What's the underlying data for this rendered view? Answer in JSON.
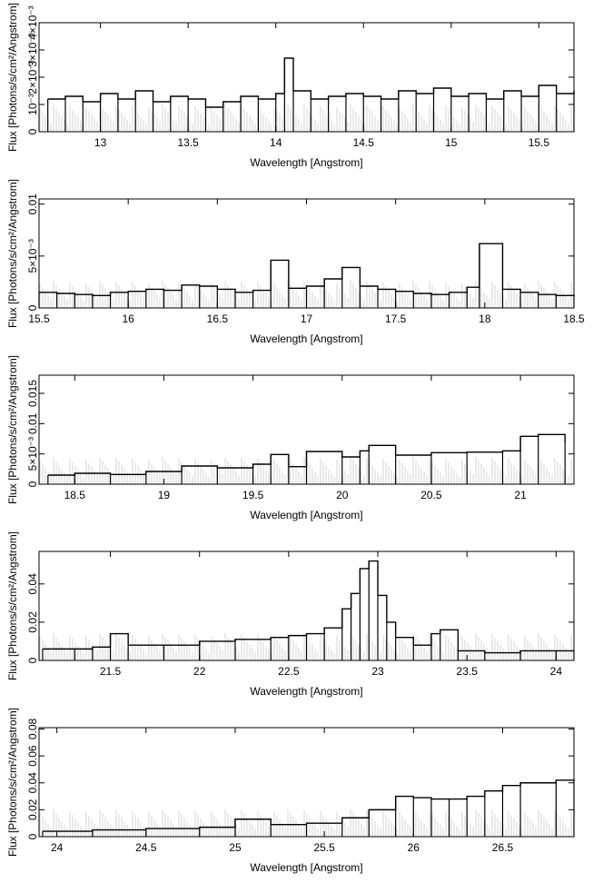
{
  "chart_data": [
    {
      "type": "line",
      "xlabel": "Wavelength [Angstrom]",
      "ylabel": "Flux [Photons/s/cm²/Angstrom]",
      "xlim": [
        12.65,
        15.7
      ],
      "ylim": [
        0,
        0.004
      ],
      "xticks": [
        "13",
        "13.5",
        "14",
        "14.5",
        "15",
        "15.5"
      ],
      "yticks": [
        "0",
        "10⁻³",
        "2×10⁻³",
        "3×10⁻³",
        "4×10⁻³"
      ],
      "series": [
        {
          "values": [
            [
              12.7,
              0.0012
            ],
            [
              12.8,
              0.0013
            ],
            [
              12.9,
              0.0011
            ],
            [
              13.0,
              0.0014
            ],
            [
              13.1,
              0.0012
            ],
            [
              13.2,
              0.0015
            ],
            [
              13.3,
              0.0011
            ],
            [
              13.4,
              0.0013
            ],
            [
              13.5,
              0.0012
            ],
            [
              13.6,
              0.0009
            ],
            [
              13.7,
              0.0011
            ],
            [
              13.8,
              0.0013
            ],
            [
              13.9,
              0.0012
            ],
            [
              14.0,
              0.0014
            ],
            [
              14.05,
              0.0027
            ],
            [
              14.1,
              0.0015
            ],
            [
              14.2,
              0.0012
            ],
            [
              14.3,
              0.0013
            ],
            [
              14.4,
              0.0014
            ],
            [
              14.5,
              0.0013
            ],
            [
              14.6,
              0.0012
            ],
            [
              14.7,
              0.0015
            ],
            [
              14.8,
              0.0014
            ],
            [
              14.9,
              0.0016
            ],
            [
              15.0,
              0.0013
            ],
            [
              15.1,
              0.0014
            ],
            [
              15.2,
              0.0012
            ],
            [
              15.3,
              0.0015
            ],
            [
              15.4,
              0.0013
            ],
            [
              15.5,
              0.0017
            ],
            [
              15.6,
              0.0014
            ],
            [
              15.7,
              0.0015
            ]
          ]
        }
      ]
    },
    {
      "type": "line",
      "xlabel": "Wavelength [Angstrom]",
      "ylabel": "Flux [Photons/s/cm²/Angstrom]",
      "xlim": [
        15.5,
        18.5
      ],
      "ylim": [
        0,
        0.0105
      ],
      "xticks": [
        "15.5",
        "16",
        "16.5",
        "17",
        "17.5",
        "18",
        "18.5"
      ],
      "yticks": [
        "0",
        "5×10⁻³",
        "0.01"
      ],
      "series": [
        {
          "values": [
            [
              15.5,
              0.0015
            ],
            [
              15.6,
              0.0014
            ],
            [
              15.7,
              0.0013
            ],
            [
              15.8,
              0.0012
            ],
            [
              15.9,
              0.0015
            ],
            [
              16.0,
              0.0016
            ],
            [
              16.1,
              0.0018
            ],
            [
              16.2,
              0.0017
            ],
            [
              16.3,
              0.0022
            ],
            [
              16.4,
              0.0021
            ],
            [
              16.5,
              0.0018
            ],
            [
              16.6,
              0.0015
            ],
            [
              16.7,
              0.0017
            ],
            [
              16.8,
              0.0046
            ],
            [
              16.9,
              0.0019
            ],
            [
              17.0,
              0.0021
            ],
            [
              17.1,
              0.0028
            ],
            [
              17.2,
              0.0039
            ],
            [
              17.3,
              0.0021
            ],
            [
              17.4,
              0.0018
            ],
            [
              17.5,
              0.0016
            ],
            [
              17.6,
              0.0014
            ],
            [
              17.7,
              0.0013
            ],
            [
              17.8,
              0.0015
            ],
            [
              17.9,
              0.002
            ],
            [
              17.97,
              0.0062
            ],
            [
              18.1,
              0.0018
            ],
            [
              18.2,
              0.0015
            ],
            [
              18.3,
              0.0013
            ],
            [
              18.4,
              0.0012
            ],
            [
              18.5,
              0.0013
            ]
          ]
        }
      ]
    },
    {
      "type": "line",
      "xlabel": "Wavelength [Angstrom]",
      "ylabel": "Flux [Photons/s/cm²/Angstrom]",
      "xlim": [
        18.3,
        21.3
      ],
      "ylim": [
        0,
        0.018
      ],
      "xticks": [
        "18.5",
        "19",
        "19.5",
        "20",
        "20.5",
        "21"
      ],
      "yticks": [
        "0",
        "5×10⁻³",
        "0.01",
        "0.015"
      ],
      "series": [
        {
          "values": [
            [
              18.35,
              0.0015
            ],
            [
              18.5,
              0.0018
            ],
            [
              18.7,
              0.0016
            ],
            [
              18.9,
              0.0021
            ],
            [
              19.1,
              0.003
            ],
            [
              19.3,
              0.0027
            ],
            [
              19.5,
              0.0033
            ],
            [
              19.6,
              0.0049
            ],
            [
              19.7,
              0.0029
            ],
            [
              19.8,
              0.0054
            ],
            [
              20.0,
              0.0045
            ],
            [
              20.1,
              0.0055
            ],
            [
              20.15,
              0.0064
            ],
            [
              20.3,
              0.0048
            ],
            [
              20.5,
              0.0052
            ],
            [
              20.7,
              0.0053
            ],
            [
              20.9,
              0.0055
            ],
            [
              21.0,
              0.0079
            ],
            [
              21.1,
              0.0082
            ],
            [
              21.25,
              0.0068
            ]
          ]
        }
      ]
    },
    {
      "type": "line",
      "xlabel": "Wavelength [Angstrom]",
      "ylabel": "Flux [Photons/s/cm²/Angstrom]",
      "xlim": [
        21.1,
        24.1
      ],
      "ylim": [
        0,
        0.057
      ],
      "xticks": [
        "21.5",
        "22",
        "22.5",
        "23",
        "23.5",
        "24"
      ],
      "yticks": [
        "0",
        "0.02",
        "0.04"
      ],
      "series": [
        {
          "values": [
            [
              21.12,
              0.006
            ],
            [
              21.3,
              0.006
            ],
            [
              21.4,
              0.007
            ],
            [
              21.5,
              0.014
            ],
            [
              21.6,
              0.008
            ],
            [
              21.8,
              0.008
            ],
            [
              22.0,
              0.01
            ],
            [
              22.2,
              0.011
            ],
            [
              22.4,
              0.012
            ],
            [
              22.5,
              0.013
            ],
            [
              22.6,
              0.014
            ],
            [
              22.7,
              0.017
            ],
            [
              22.8,
              0.027
            ],
            [
              22.85,
              0.035
            ],
            [
              22.9,
              0.048
            ],
            [
              22.95,
              0.052
            ],
            [
              23.0,
              0.034
            ],
            [
              23.05,
              0.02
            ],
            [
              23.1,
              0.012
            ],
            [
              23.2,
              0.008
            ],
            [
              23.3,
              0.014
            ],
            [
              23.35,
              0.016
            ],
            [
              23.45,
              0.005
            ],
            [
              23.6,
              0.004
            ],
            [
              23.8,
              0.005
            ],
            [
              24.0,
              0.005
            ],
            [
              24.1,
              0.005
            ]
          ]
        }
      ]
    },
    {
      "type": "line",
      "xlabel": "Wavelength [Angstrom]",
      "ylabel": "Flux [Photons/s/cm²/Angstrom]",
      "xlim": [
        23.9,
        26.9
      ],
      "ylim": [
        0,
        0.081
      ],
      "xticks": [
        "24",
        "24.5",
        "25",
        "25.5",
        "26",
        "26.5"
      ],
      "yticks": [
        "0",
        "0.02",
        "0.04",
        "0.06",
        "0.08"
      ],
      "series": [
        {
          "values": [
            [
              23.92,
              0.004
            ],
            [
              24.2,
              0.005
            ],
            [
              24.5,
              0.006
            ],
            [
              24.8,
              0.007
            ],
            [
              25.0,
              0.013
            ],
            [
              25.2,
              0.009
            ],
            [
              25.4,
              0.01
            ],
            [
              25.6,
              0.014
            ],
            [
              25.75,
              0.02
            ],
            [
              25.9,
              0.03
            ],
            [
              26.0,
              0.029
            ],
            [
              26.1,
              0.028
            ],
            [
              26.2,
              0.028
            ],
            [
              26.3,
              0.03
            ],
            [
              26.4,
              0.034
            ],
            [
              26.5,
              0.038
            ],
            [
              26.6,
              0.04
            ],
            [
              26.8,
              0.042
            ],
            [
              26.9,
              0.041
            ]
          ]
        }
      ]
    }
  ]
}
